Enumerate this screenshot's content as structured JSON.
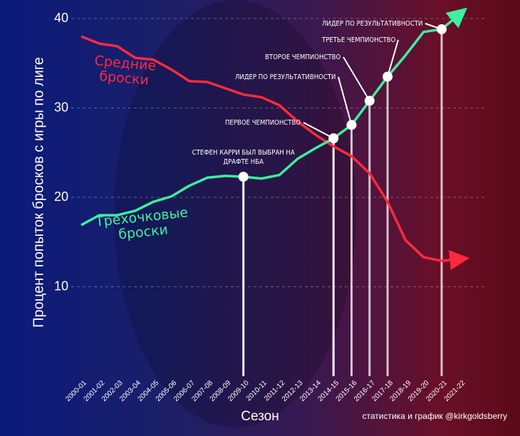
{
  "chart_data": {
    "type": "line",
    "y_label": "Процент попыток бросков с игры по лиге",
    "x_label": "Сезон",
    "credit": "статистика и график @kirkgoldsberry",
    "categories": [
      "2000-01",
      "2001-02",
      "2002-03",
      "2003-04",
      "2004-05",
      "2005-06",
      "2006-07",
      "2007-08",
      "2008-09",
      "2009-10",
      "2010-11",
      "2011-12",
      "2012-13",
      "2013-14",
      "2014-15",
      "2015-16",
      "2016-17",
      "2017-18",
      "2018-19",
      "2019-20",
      "2020-21",
      "2021-22"
    ],
    "series": [
      {
        "name": "Средние броски",
        "color": "#ff2a3c",
        "values": [
          38,
          37.2,
          36.9,
          35.6,
          35.4,
          34.3,
          33,
          32.9,
          32.2,
          31.5,
          31.2,
          30.3,
          28.5,
          27,
          25.7,
          24.6,
          22.7,
          19.5,
          15.2,
          13.3,
          12.9,
          13.1
        ]
      },
      {
        "name": "Трехочковые броски",
        "color": "#3df09c",
        "values": [
          16.9,
          18,
          18,
          18.5,
          19.5,
          20.1,
          21.3,
          22.2,
          22.4,
          22.3,
          22.1,
          22.5,
          24.3,
          25.5,
          26.6,
          28.1,
          30.8,
          33.5,
          35.9,
          38.5,
          38.8,
          40.5
        ]
      }
    ],
    "annotations": [
      {
        "season": "2009-10",
        "text": "СТЕФЕН КАРРИ БЫЛ ВЫБРАН НА ДРАФТЕ НБА"
      },
      {
        "season": "2014-15",
        "text": "ПЕРВОЕ ЧЕМПИОНСТВО"
      },
      {
        "season": "2015-16",
        "text": "ЛИДЕР ПО РЕЗУЛЬТАТИВНОСТИ"
      },
      {
        "season": "2016-17",
        "text": "ВТОРОЕ ЧЕМПИОНСТВО"
      },
      {
        "season": "2017-18",
        "text": "ТРЕТЬЕ ЧЕМПИОНСТВО"
      },
      {
        "season": "2020-21",
        "text": "ЛИДЕР ПО РЕЗУЛЬТАТИВНОСТИ"
      }
    ],
    "ylim": [
      0,
      41
    ],
    "yticks": [
      10,
      20,
      30,
      40
    ],
    "grid": true
  }
}
